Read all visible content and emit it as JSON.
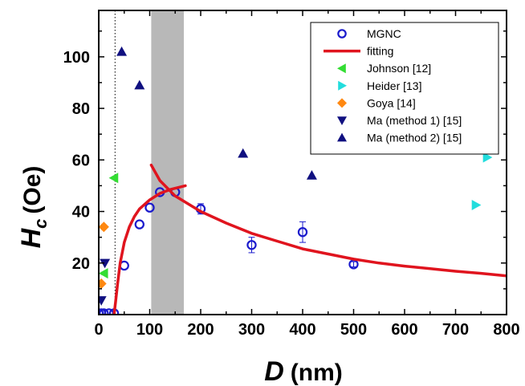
{
  "chart_data": {
    "type": "scatter",
    "xlabel": {
      "main": "D",
      "unit": "(nm)"
    },
    "ylabel": {
      "main": "H",
      "sub": "c",
      "unit": "(Oe)"
    },
    "xlim": [
      0,
      800
    ],
    "ylim": [
      0,
      118
    ],
    "x_ticks": [
      "0",
      "100",
      "200",
      "300",
      "400",
      "500",
      "600",
      "700",
      "800"
    ],
    "y_ticks": [
      "20",
      "40",
      "60",
      "80",
      "100"
    ],
    "grid": false,
    "legend_position": "top-right",
    "shaded_region": [
      103,
      167
    ],
    "dotted_line_x": 32,
    "series": [
      {
        "name": "MGNC",
        "marker": "open-circle",
        "color": "#1a1acc",
        "points": [
          {
            "x": 0,
            "y": 0.5
          },
          {
            "x": 5,
            "y": 0.5
          },
          {
            "x": 10,
            "y": 0.5
          },
          {
            "x": 20,
            "y": 0.5
          },
          {
            "x": 30,
            "y": 0.5
          },
          {
            "x": 50,
            "y": 19
          },
          {
            "x": 80,
            "y": 35
          },
          {
            "x": 100,
            "y": 41.5
          },
          {
            "x": 120,
            "y": 47.5
          },
          {
            "x": 150,
            "y": 47.5
          },
          {
            "x": 200,
            "y": 41
          },
          {
            "x": 300,
            "y": 27
          },
          {
            "x": 400,
            "y": 32
          },
          {
            "x": 500,
            "y": 19.5
          }
        ],
        "error": [
          0,
          0,
          0,
          0,
          0,
          0,
          0,
          0,
          0,
          0,
          2,
          3,
          4,
          1
        ]
      },
      {
        "name": "fitting",
        "marker": "line",
        "color": "#e0141e",
        "curves": [
          [
            [
              30,
              0
            ],
            [
              33,
              5
            ],
            [
              37,
              12
            ],
            [
              42,
              20
            ],
            [
              50,
              28
            ],
            [
              60,
              34
            ],
            [
              70,
              38
            ],
            [
              80,
              41
            ],
            [
              100,
              44.5
            ],
            [
              120,
              47
            ],
            [
              140,
              48.5
            ],
            [
              170,
              50
            ]
          ],
          [
            [
              103,
              58
            ],
            [
              120,
              52
            ],
            [
              150,
              46
            ],
            [
              200,
              40
            ],
            [
              250,
              35.5
            ],
            [
              300,
              31.5
            ],
            [
              350,
              28.5
            ],
            [
              400,
              25.5
            ],
            [
              450,
              23.5
            ],
            [
              500,
              21.5
            ],
            [
              550,
              20
            ],
            [
              600,
              18.8
            ],
            [
              650,
              17.8
            ],
            [
              700,
              16.8
            ],
            [
              750,
              16
            ],
            [
              800,
              15
            ]
          ]
        ]
      },
      {
        "name": "Johnson [12]",
        "marker": "triangle-left",
        "color": "#33dd33",
        "points": [
          {
            "x": 30,
            "y": 53
          },
          {
            "x": 10,
            "y": 16
          }
        ]
      },
      {
        "name": "Heider [13]",
        "marker": "triangle-right",
        "color": "#22dddd",
        "points": [
          {
            "x": 762,
            "y": 61
          },
          {
            "x": 740,
            "y": 42.5
          }
        ]
      },
      {
        "name": "Goya [14]",
        "marker": "diamond",
        "color": "#ff8811",
        "points": [
          {
            "x": 10,
            "y": 34
          },
          {
            "x": 5,
            "y": 12
          }
        ]
      },
      {
        "name": "Ma (method 1) [15]",
        "marker": "triangle-down",
        "color": "#101080",
        "points": [
          {
            "x": 12,
            "y": 20
          },
          {
            "x": 5,
            "y": 5.5
          }
        ]
      },
      {
        "name": "Ma (method 2) [15]",
        "marker": "triangle-up",
        "color": "#101080",
        "points": [
          {
            "x": 45,
            "y": 102
          },
          {
            "x": 80,
            "y": 89
          },
          {
            "x": 283,
            "y": 62.5
          },
          {
            "x": 418,
            "y": 54
          }
        ]
      }
    ]
  }
}
